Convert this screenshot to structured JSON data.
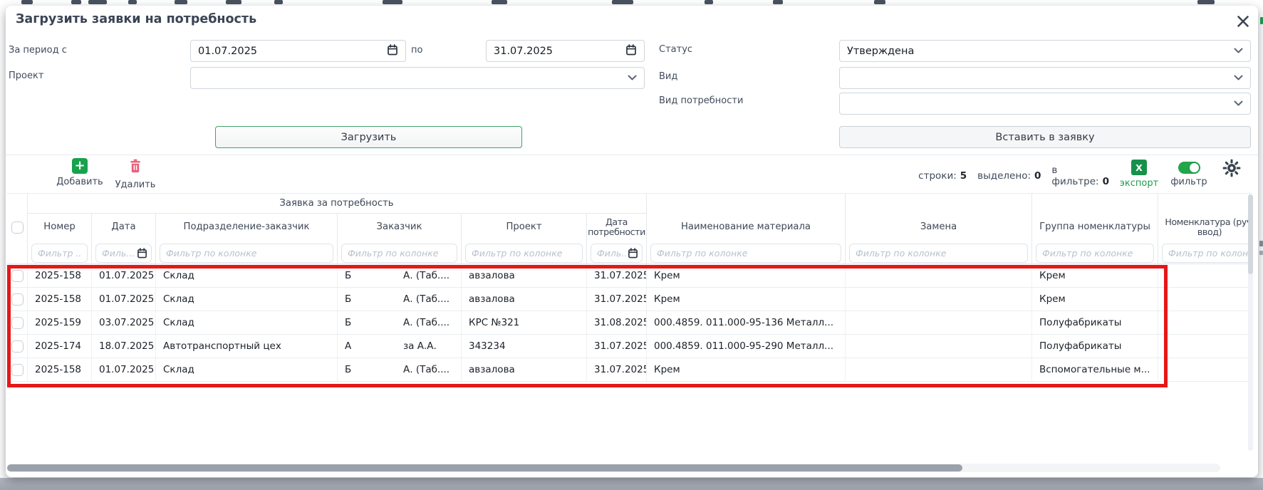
{
  "dialog": {
    "title": "Загрузить заявки на потребность"
  },
  "filters": {
    "period_label": "За период с",
    "period_from": "01.07.2025",
    "to_label": "по",
    "period_to": "31.07.2025",
    "project_label": "Проект",
    "project_value": "",
    "status_label": "Статус",
    "status_value": "Утверждена",
    "kind_label": "Вид",
    "kind_value": "",
    "need_kind_label": "Вид потребности",
    "need_kind_value": ""
  },
  "actions": {
    "load_button": "Загрузить",
    "insert_button": "Вставить в заявку"
  },
  "toolbar": {
    "add_label": "Добавить",
    "delete_label": "Удалить",
    "rows_label": "строки:",
    "rows_count": "5",
    "selected_label": "выделено:",
    "selected_count": "0",
    "in_filter_label": "в фильтре:",
    "in_filter_count": "0",
    "export_icon_text": "X",
    "export_label": "экспорт",
    "filter_toggle_label": "фильтр",
    "filter_toggle_state": "on"
  },
  "table": {
    "group_header": "Заявка за потребность",
    "columns": [
      "Номер",
      "Дата",
      "Подразделение-заказчик",
      "Заказчик",
      "Проект",
      "Дата потребности",
      "Наименование материала",
      "Замена",
      "Группа номенклатуры",
      "Номенклатура (руч. ввод)"
    ],
    "filter_placeholders": {
      "short": "Фильтр ...",
      "date": "Филь...",
      "column": "Фильтр по колонке"
    },
    "rows": [
      {
        "number": "2025-158",
        "date": "01.07.2025",
        "department": "Склад",
        "customer_prefix": "Б",
        "customer_suffix": "А. (Таб....",
        "project": "авзалова",
        "need_date": "31.07.2025",
        "material": "Крем",
        "replacement": "",
        "group": "Крем",
        "manual": ""
      },
      {
        "number": "2025-158",
        "date": "01.07.2025",
        "department": "Склад",
        "customer_prefix": "Б",
        "customer_suffix": "А. (Таб....",
        "project": "авзалова",
        "need_date": "31.07.2025",
        "material": "Крем",
        "replacement": "",
        "group": "Крем",
        "manual": ""
      },
      {
        "number": "2025-159",
        "date": "03.07.2025",
        "department": "Склад",
        "customer_prefix": "Б",
        "customer_suffix": "А. (Таб....",
        "project": "КРС №321",
        "need_date": "31.08.2025",
        "material": "000.4859. 011.000-95-136 Металл...",
        "replacement": "",
        "group": "Полуфабрикаты",
        "manual": ""
      },
      {
        "number": "2025-174",
        "date": "18.07.2025",
        "department": "Автотранспортный цех",
        "customer_prefix": "А",
        "customer_suffix": "за А.А.",
        "project": "343234",
        "need_date": "31.07.2025",
        "material": "000.4859. 011.000-95-290 Металл...",
        "replacement": "",
        "group": "Полуфабрикаты",
        "manual": ""
      },
      {
        "number": "2025-158",
        "date": "01.07.2025",
        "department": "Склад",
        "customer_prefix": "Б",
        "customer_suffix": "А. (Таб....",
        "project": "авзалова",
        "need_date": "31.07.2025",
        "material": "Крем",
        "replacement": "",
        "group": "Вспомогательные м...",
        "manual": ""
      }
    ]
  },
  "colors": {
    "accent_green": "#17a24b",
    "export_green": "#1d9e4f",
    "button_border_green": "#3fa26d",
    "delete_pink": "#ee5e79",
    "highlight_red": "#e51717"
  }
}
